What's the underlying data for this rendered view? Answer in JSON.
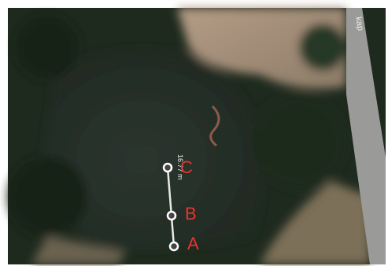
{
  "map": {
    "road_label": "kap"
  },
  "measurement": {
    "distance": "16.77 m"
  },
  "markers": [
    {
      "label": "C"
    },
    {
      "label": "B"
    },
    {
      "label": "A"
    }
  ]
}
